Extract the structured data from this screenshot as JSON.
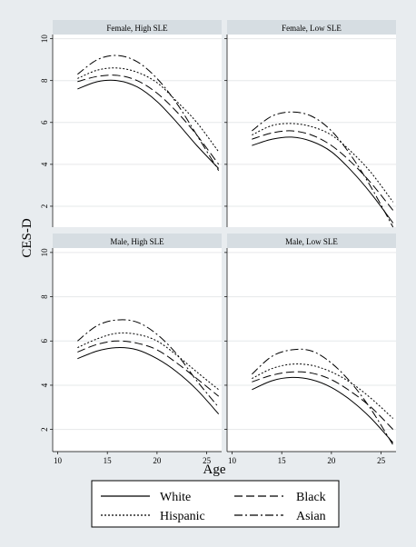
{
  "figure": {
    "ylabel": "CES-D",
    "xlabel": "Age",
    "background": "#e8ecef",
    "panel_header_color": "#d6dde2",
    "line_color": "#000000"
  },
  "legend": {
    "items": [
      {
        "label": "White",
        "dash": "solid"
      },
      {
        "label": "Black",
        "dash": "dash"
      },
      {
        "label": "Hispanic",
        "dash": "dot"
      },
      {
        "label": "Asian",
        "dash": "dashdot"
      }
    ]
  },
  "chart_data": [
    {
      "type": "line",
      "title": "Female, High SLE",
      "x": [
        12,
        14,
        16,
        18,
        20,
        22,
        24,
        26.2
      ],
      "xlim": [
        9.5,
        26.5
      ],
      "ylim": [
        1,
        10.2
      ],
      "xticks": [
        10,
        15,
        20,
        25
      ],
      "yticks": [
        2,
        4,
        6,
        8,
        10
      ],
      "series": [
        {
          "name": "White",
          "values": [
            7.6,
            7.95,
            8.0,
            7.7,
            7.0,
            6.0,
            4.9,
            3.8
          ]
        },
        {
          "name": "Black",
          "values": [
            7.95,
            8.2,
            8.25,
            8.0,
            7.4,
            6.5,
            5.4,
            4.0
          ]
        },
        {
          "name": "Hispanic",
          "values": [
            8.1,
            8.5,
            8.6,
            8.4,
            7.9,
            7.0,
            6.0,
            4.6
          ]
        },
        {
          "name": "Asian",
          "values": [
            8.3,
            9.0,
            9.2,
            8.9,
            8.1,
            6.9,
            5.4,
            3.7
          ]
        }
      ]
    },
    {
      "type": "line",
      "title": "Female, Low SLE",
      "x": [
        12,
        14,
        16,
        18,
        20,
        22,
        24,
        26.2
      ],
      "xlim": [
        9.5,
        26.5
      ],
      "ylim": [
        1,
        10.2
      ],
      "xticks": [
        10,
        15,
        20,
        25
      ],
      "yticks": [
        2,
        4,
        6,
        8,
        10
      ],
      "series": [
        {
          "name": "White",
          "values": [
            4.9,
            5.2,
            5.3,
            5.1,
            4.6,
            3.7,
            2.6,
            1.2
          ]
        },
        {
          "name": "Black",
          "values": [
            5.2,
            5.5,
            5.6,
            5.4,
            4.9,
            4.1,
            3.1,
            1.8
          ]
        },
        {
          "name": "Hispanic",
          "values": [
            5.4,
            5.85,
            5.95,
            5.8,
            5.4,
            4.6,
            3.6,
            2.2
          ]
        },
        {
          "name": "Asian",
          "values": [
            5.6,
            6.3,
            6.5,
            6.3,
            5.6,
            4.4,
            2.9,
            1.0
          ]
        }
      ]
    },
    {
      "type": "line",
      "title": "Male, High SLE",
      "x": [
        12,
        14,
        16,
        18,
        20,
        22,
        24,
        26.2
      ],
      "xlim": [
        9.5,
        26.5
      ],
      "ylim": [
        1,
        10.2
      ],
      "xticks": [
        10,
        15,
        20,
        25
      ],
      "yticks": [
        2,
        4,
        6,
        8,
        10
      ],
      "series": [
        {
          "name": "White",
          "values": [
            5.2,
            5.55,
            5.7,
            5.6,
            5.2,
            4.6,
            3.8,
            2.7
          ]
        },
        {
          "name": "Black",
          "values": [
            5.5,
            5.85,
            6.0,
            5.9,
            5.6,
            5.0,
            4.3,
            3.5
          ]
        },
        {
          "name": "Hispanic",
          "values": [
            5.7,
            6.1,
            6.35,
            6.3,
            6.0,
            5.35,
            4.6,
            3.8
          ]
        },
        {
          "name": "Asian",
          "values": [
            6.0,
            6.7,
            6.95,
            6.85,
            6.3,
            5.4,
            4.2,
            3.0
          ]
        }
      ]
    },
    {
      "type": "line",
      "title": "Male, Low SLE",
      "x": [
        12,
        14,
        16,
        18,
        20,
        22,
        24,
        26.2
      ],
      "xlim": [
        9.5,
        26.5
      ],
      "ylim": [
        1,
        10.2
      ],
      "xticks": [
        10,
        15,
        20,
        25
      ],
      "yticks": [
        2,
        4,
        6,
        8,
        10
      ],
      "series": [
        {
          "name": "White",
          "values": [
            3.8,
            4.2,
            4.35,
            4.25,
            3.9,
            3.3,
            2.5,
            1.4
          ]
        },
        {
          "name": "Black",
          "values": [
            4.15,
            4.45,
            4.6,
            4.55,
            4.25,
            3.7,
            3.0,
            2.0
          ]
        },
        {
          "name": "Hispanic",
          "values": [
            4.3,
            4.75,
            4.95,
            4.9,
            4.6,
            4.1,
            3.4,
            2.5
          ]
        },
        {
          "name": "Asian",
          "values": [
            4.5,
            5.3,
            5.6,
            5.55,
            5.0,
            4.1,
            2.9,
            1.3
          ]
        }
      ]
    }
  ]
}
